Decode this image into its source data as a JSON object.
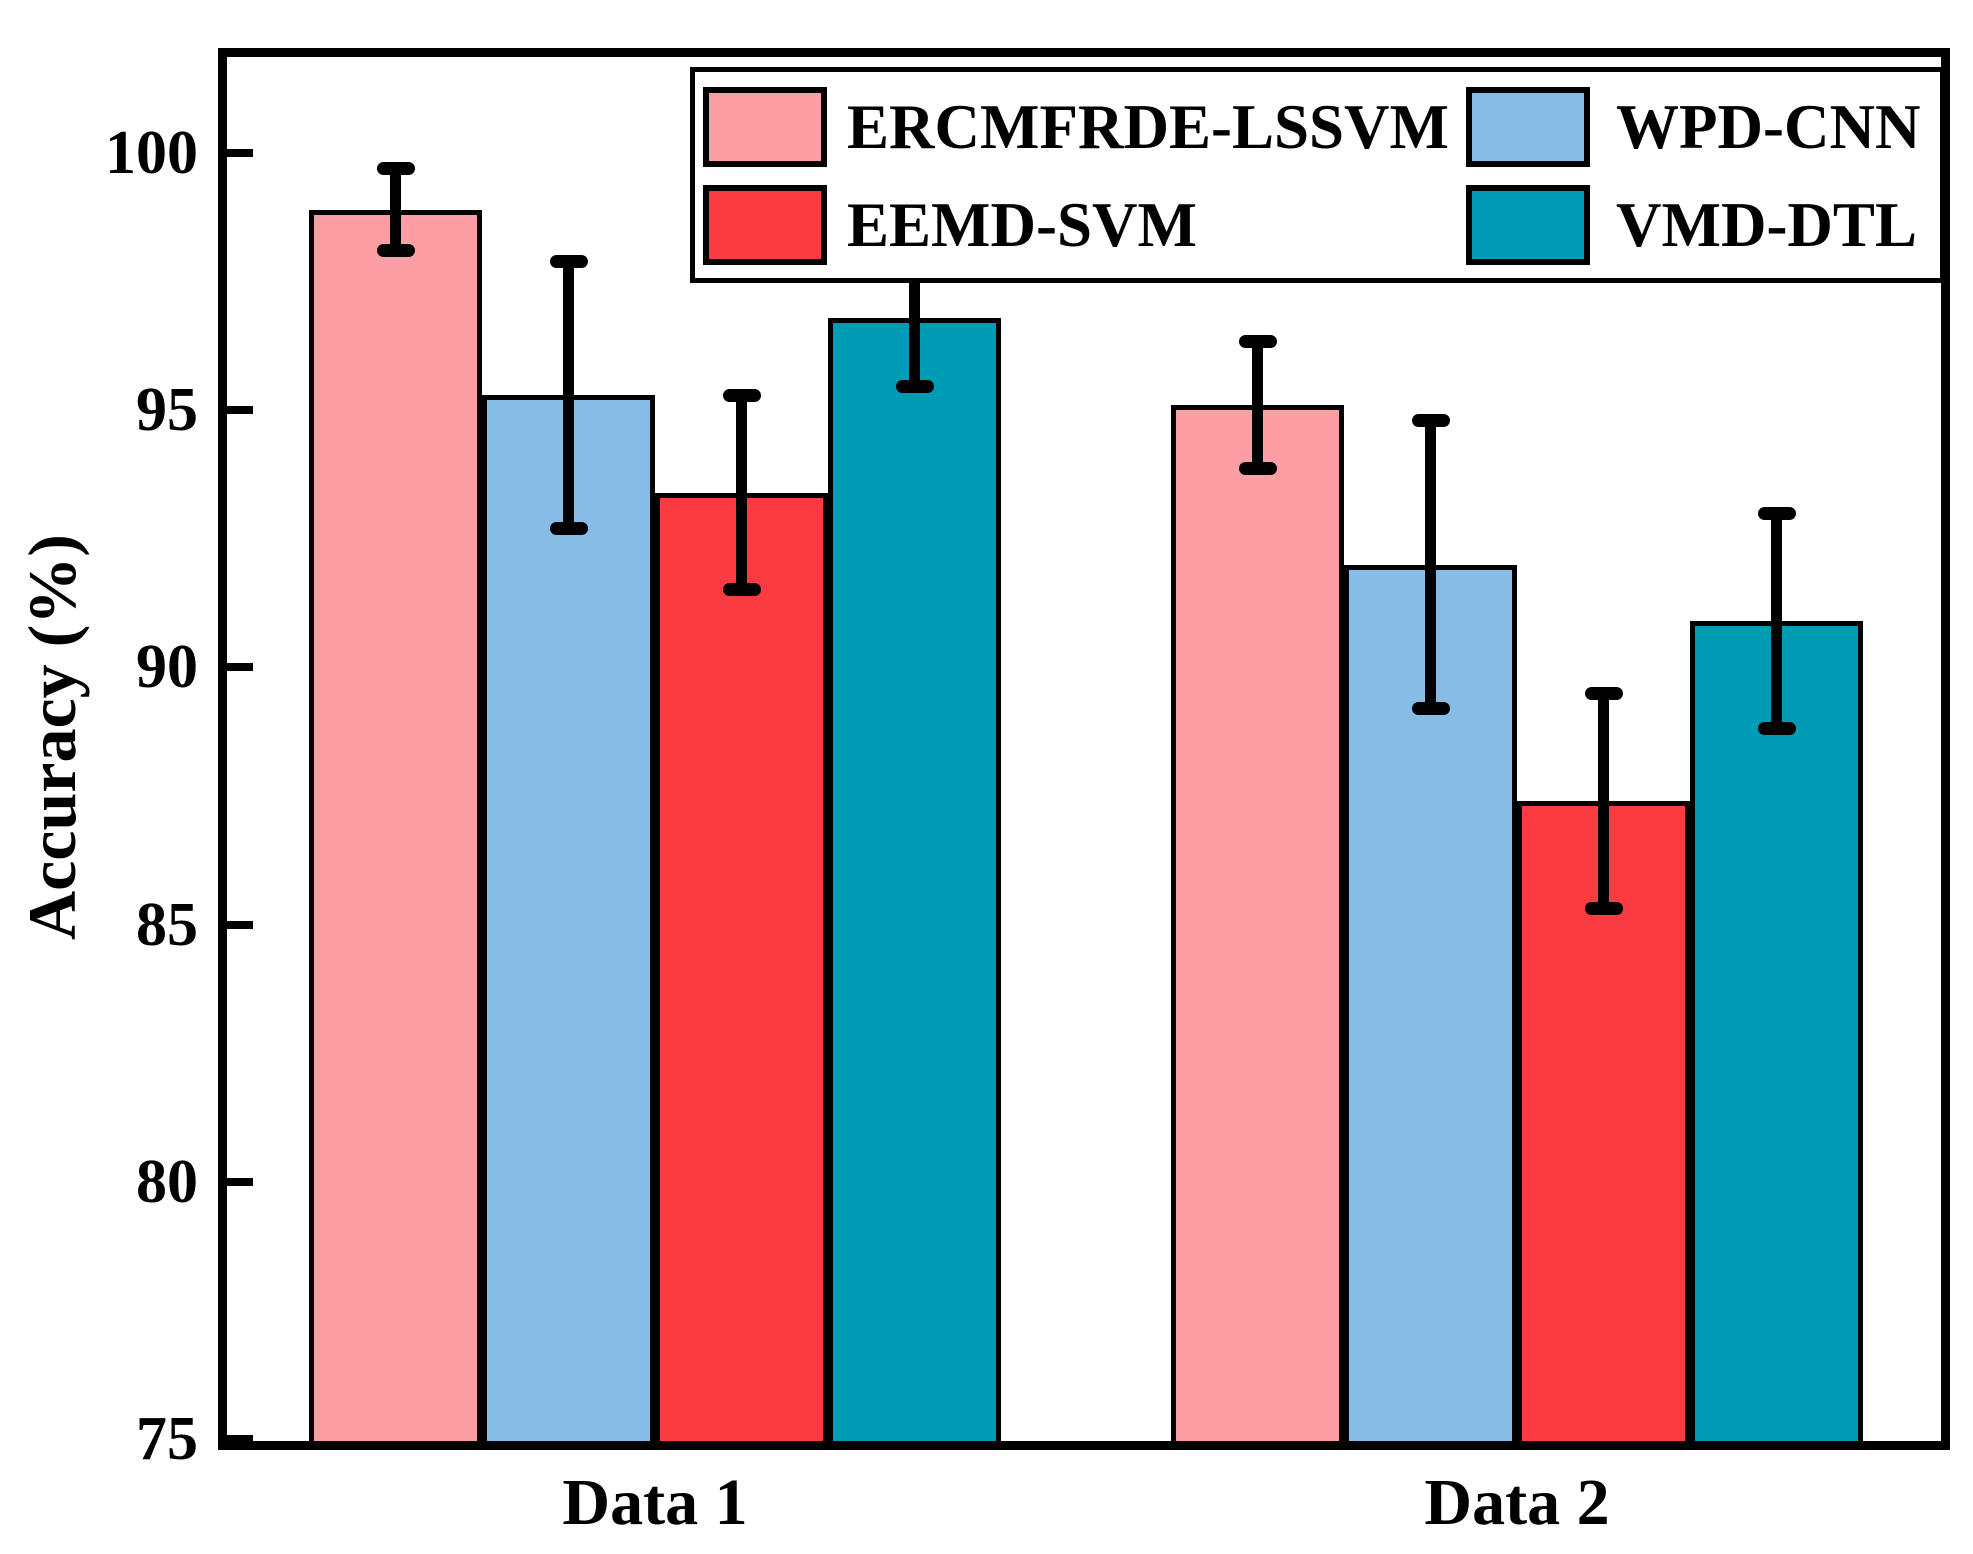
{
  "figure": {
    "background": "#ffffff",
    "frame_color": "#000000"
  },
  "chart_data": {
    "type": "bar",
    "title": "",
    "xlabel": "",
    "ylabel": "Accuracy (%)",
    "categories": [
      "Data 1",
      "Data 2"
    ],
    "series": [
      {
        "name": "ERCMFRDE-LSSVM",
        "color": "#FD9EA4",
        "values": [
          98.9,
          95.1
        ],
        "errors": [
          0.8,
          1.25
        ]
      },
      {
        "name": "WPD-CNN",
        "color": "#86BCE6",
        "values": [
          95.3,
          92.0
        ],
        "errors": [
          2.6,
          2.8
        ]
      },
      {
        "name": "EEMD-SVM",
        "color": "#FA3B42",
        "values": [
          93.4,
          87.4
        ],
        "errors": [
          1.9,
          2.1
        ]
      },
      {
        "name": "VMD-DTL",
        "color": "#009BB4",
        "values": [
          96.8,
          90.9
        ],
        "errors": [
          1.35,
          2.1
        ]
      }
    ],
    "ylim": [
      75,
      102
    ],
    "yticks": [
      75,
      80,
      85,
      90,
      95,
      100
    ],
    "grid": false,
    "bar_edge_color": "#000000",
    "error_bar_color": "#000000",
    "legend_position": "top-inside",
    "legend_columns": 2,
    "legend_column_order": [
      [
        0,
        2
      ],
      [
        1,
        3
      ]
    ]
  }
}
